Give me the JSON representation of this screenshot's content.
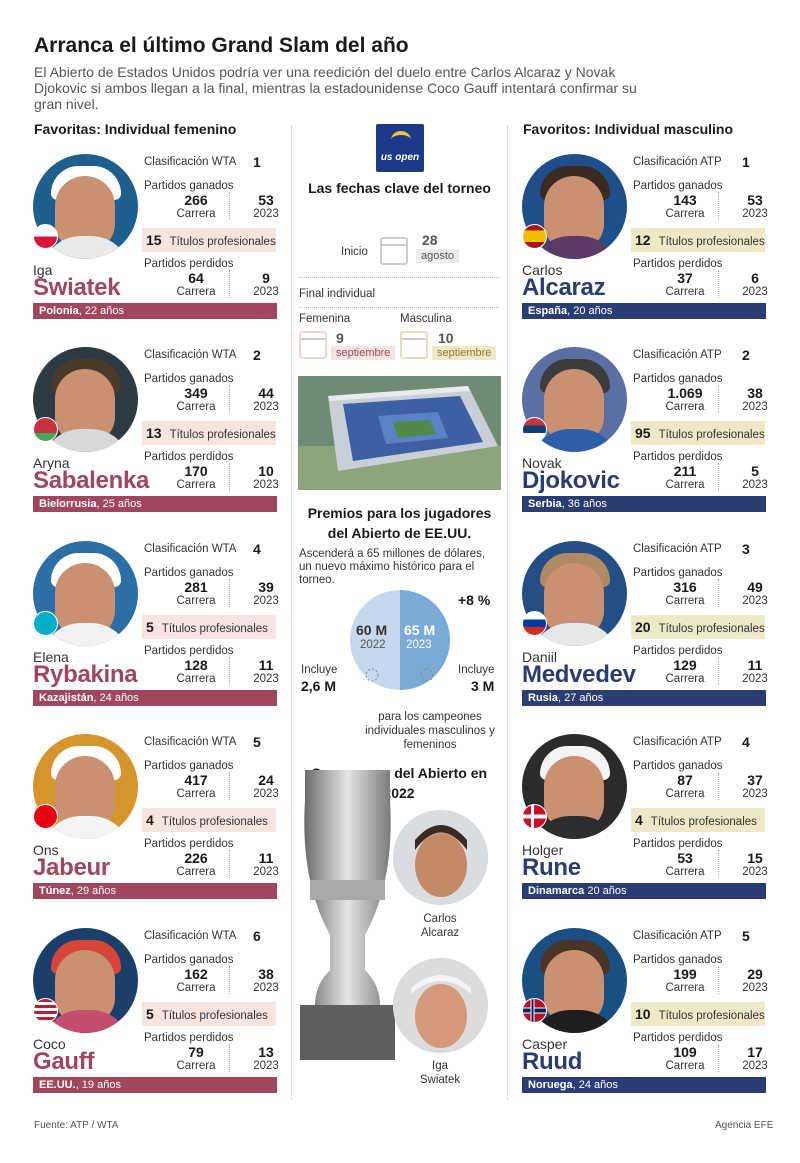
{
  "title": "Arranca el último Grand Slam del año",
  "subtitle": "El Abierto de Estados Unidos podría ver una reedición del duelo entre Carlos Alcaraz y Novak Djokovic si ambos llegan a la final, mientras la estadounidense Coco Gauff intentará confirmar su gran nivel.",
  "headers": {
    "female": "Favoritas: Individual femenino",
    "male": "Favoritos: Individual masculino"
  },
  "labels": {
    "rank_wta": "Clasificación WTA",
    "rank_atp": "Clasificación ATP",
    "won": "Partidos ganados",
    "lost": "Partidos perdidos",
    "career": "Carrera",
    "year": "2023",
    "titles": "Títulos profesionales"
  },
  "female": [
    {
      "first": "Iga",
      "last": "Swiatek",
      "rank": "1",
      "won_career": "266",
      "won_year": "53",
      "titles": "15",
      "lost_career": "64",
      "lost_year": "9",
      "country": "Polonia",
      "age": ", 22 años",
      "flag": "poland-flag-icon"
    },
    {
      "first": "Aryna",
      "last": "Sabalenka",
      "rank": "2",
      "won_career": "349",
      "won_year": "44",
      "titles": "13",
      "lost_career": "170",
      "lost_year": "10",
      "country": "Bielorrusia",
      "age": ", 25 años",
      "flag": "belarus-flag-icon"
    },
    {
      "first": "Elena",
      "last": "Rybakina",
      "rank": "4",
      "won_career": "281",
      "won_year": "39",
      "titles": "5",
      "lost_career": "128",
      "lost_year": "11",
      "country": "Kazajistán",
      "age": ", 24 años",
      "flag": "kazakhstan-flag-icon"
    },
    {
      "first": "Ons",
      "last": "Jabeur",
      "rank": "5",
      "won_career": "417",
      "won_year": "24",
      "titles": "4",
      "lost_career": "226",
      "lost_year": "11",
      "country": "Túnez",
      "age": ", 29 años",
      "flag": "tunisia-flag-icon"
    },
    {
      "first": "Coco",
      "last": "Gauff",
      "rank": "6",
      "won_career": "162",
      "won_year": "38",
      "titles": "5",
      "lost_career": "79",
      "lost_year": "13",
      "country": "EE.UU.",
      "age": ", 19 años",
      "flag": "usa-flag-icon"
    }
  ],
  "male": [
    {
      "first": "Carlos",
      "last": "Alcaraz",
      "rank": "1",
      "won_career": "143",
      "won_year": "53",
      "titles": "12",
      "lost_career": "37",
      "lost_year": "6",
      "country": "España",
      "age": ", 20 años",
      "flag": "spain-flag-icon"
    },
    {
      "first": "Novak",
      "last": "Djokovic",
      "rank": "2",
      "won_career": "1.069",
      "won_year": "38",
      "titles": "95",
      "lost_career": "211",
      "lost_year": "5",
      "country": "Serbia",
      "age": ", 36 años",
      "flag": "serbia-flag-icon"
    },
    {
      "first": "Daniil",
      "last": "Medvedev",
      "rank": "3",
      "won_career": "316",
      "won_year": "49",
      "titles": "20",
      "lost_career": "129",
      "lost_year": "11",
      "country": "Rusia",
      "age": ", 27 años",
      "flag": "russia-flag-icon"
    },
    {
      "first": "Holger",
      "last": "Rune",
      "rank": "4",
      "won_career": "87",
      "won_year": "37",
      "titles": "4",
      "lost_career": "53",
      "lost_year": "15",
      "country": "Dinamarca",
      "age": " 20 años",
      "flag": "denmark-flag-icon"
    },
    {
      "first": "Casper",
      "last": "Ruud",
      "rank": "5",
      "won_career": "199",
      "won_year": "29",
      "titles": "10",
      "lost_career": "109",
      "lost_year": "17",
      "country": "Noruega",
      "age": ", 24 años",
      "flag": "norway-flag-icon"
    }
  ],
  "center": {
    "logo_text": "us open",
    "dates_title": "Las fechas clave del torneo",
    "start_label": "Inicio",
    "start_day": "28",
    "start_month": "agosto",
    "final_label": "Final individual",
    "fem_label": "Femenina",
    "fem_day": "9",
    "fem_month": "septiembre",
    "masc_label": "Masculina",
    "masc_day": "10",
    "masc_month": "septiembre",
    "prize_title": "Premios para los jugadores del Abierto de EE.UU.",
    "prize_text": "Ascenderá a 65 millones de dólares, un nuevo máximo histórico para el torneo.",
    "pct": "+8 %",
    "left_val": "60 M",
    "left_year": "2022",
    "right_val": "65 M",
    "right_year": "2023",
    "incl_left_label": "Incluye",
    "incl_left_val": "2,6 M",
    "incl_right_label": "Incluye",
    "incl_right_val": "3 M",
    "incl_note": "para los campeones individuales masculinos y femeninos",
    "champs_title": "Campeones del Abierto en 2022",
    "champ1": "Carlos Alcaraz",
    "champ2": "Iga Swiatek"
  },
  "prize_chart_values": {
    "2022": 60,
    "2023": 65
  },
  "colors": {
    "female": "#a1475d",
    "male": "#2b3c73",
    "female_box": "#f6e4df",
    "male_box": "#efe8c7",
    "prize_2022": "#c5d8ec",
    "prize_2023": "#7aaad5"
  },
  "footer": {
    "source": "Fuente: ATP / WTA",
    "agency": "Agencia EFE"
  }
}
